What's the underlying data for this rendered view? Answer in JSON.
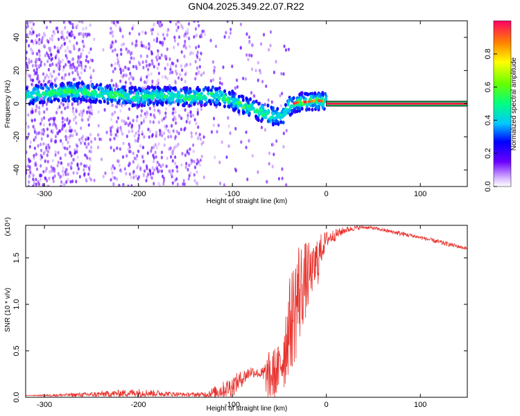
{
  "chart_data": [
    {
      "type": "scatter",
      "title": "GN04.2025.349.22.07.R22",
      "xlabel": "Height of straight line (km)",
      "ylabel": "Frequency (Hz)",
      "xlim": [
        -320,
        150
      ],
      "ylim": [
        -50,
        50
      ],
      "xticks": [
        -300,
        -200,
        -100,
        0,
        100
      ],
      "yticks": [
        -40,
        -20,
        0,
        20,
        40
      ],
      "colorbar": {
        "label": "Normalized spectral amplitude",
        "range": [
          0,
          1
        ],
        "ticks": [
          "0.0",
          "0.2",
          "0.4",
          "0.6",
          "0.8"
        ]
      },
      "ridge": {
        "x": [
          -320,
          -300,
          -280,
          -260,
          -240,
          -220,
          -200,
          -180,
          -160,
          -140,
          -120,
          -100,
          -90,
          -80,
          -70,
          -60,
          -50,
          -45,
          -40,
          -35,
          -30,
          -20,
          -10,
          0,
          150
        ],
        "y": [
          5,
          6,
          7,
          7,
          6,
          5,
          4,
          5,
          4,
          4,
          5,
          2,
          -1,
          -3,
          -5,
          -7,
          -8,
          -6,
          -2,
          0,
          1,
          1,
          2,
          1,
          0
        ]
      },
      "scatter_extent_km": [
        -320,
        0
      ],
      "constant_line": {
        "x_start": 0,
        "x_end": 150,
        "y": 0,
        "amplitude": 0.97
      }
    },
    {
      "type": "line",
      "xlabel": "Height of straight line (km)",
      "ylabel": "SNR (10 * v/v)",
      "scale_label": "(x10⁴)",
      "xlim": [
        -320,
        150
      ],
      "ylim": [
        0,
        1.85
      ],
      "xticks": [
        -300,
        -200,
        -100,
        0,
        100
      ],
      "yticks": [
        "0.0",
        "0.5",
        "1.0",
        "1.5"
      ],
      "series": [
        {
          "color": "#e8312c",
          "x": [
            -320,
            -300,
            -250,
            -200,
            -150,
            -130,
            -120,
            -110,
            -100,
            -90,
            -80,
            -70,
            -60,
            -50,
            -45,
            -40,
            -35,
            -30,
            -25,
            -20,
            -15,
            -10,
            -5,
            0,
            10,
            20,
            30,
            40,
            50,
            60,
            80,
            100,
            120,
            150
          ],
          "y": [
            0.02,
            0.02,
            0.03,
            0.05,
            0.03,
            0.03,
            0.05,
            0.08,
            0.12,
            0.2,
            0.28,
            0.25,
            0.22,
            0.3,
            0.5,
            0.75,
            0.9,
            1.1,
            1.2,
            1.3,
            1.35,
            1.45,
            1.6,
            1.7,
            1.75,
            1.8,
            1.82,
            1.83,
            1.82,
            1.8,
            1.76,
            1.72,
            1.67,
            1.6
          ],
          "peak_envelope": [
            0.02,
            0.03,
            0.06,
            0.1,
            0.05,
            0.06,
            0.12,
            0.18,
            0.25,
            0.3,
            0.35,
            0.3,
            0.55,
            0.6,
            1.0,
            1.3,
            1.55,
            1.82,
            1.7,
            1.75,
            1.6,
            1.8,
            1.78,
            1.8,
            1.82,
            1.84,
            1.85,
            1.85,
            1.84,
            1.82,
            1.79,
            1.74,
            1.7,
            1.62
          ]
        }
      ]
    }
  ]
}
